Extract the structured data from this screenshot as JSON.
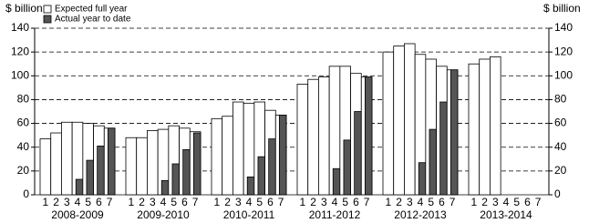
{
  "chart_data": {
    "type": "bar",
    "y_label": "$ billion",
    "y2_label": "$ billion",
    "groups": [
      "2008-2009",
      "2009-2010",
      "2010-2011",
      "2011-2012",
      "2012-2013",
      "2013-2014"
    ],
    "categories": [
      "1",
      "2",
      "3",
      "4",
      "5",
      "6",
      "7",
      "1",
      "2",
      "3",
      "4",
      "5",
      "6",
      "7",
      "1",
      "2",
      "3",
      "4",
      "5",
      "6",
      "7",
      "1",
      "2",
      "3",
      "4",
      "5",
      "6",
      "7",
      "1",
      "2",
      "3",
      "4",
      "5",
      "6",
      "7",
      "1",
      "2",
      "3",
      "4",
      "5",
      "6",
      "7"
    ],
    "series": [
      {
        "name": "Expected full year",
        "color": "#ffffff",
        "values": [
          47,
          52,
          61,
          61,
          60,
          58,
          56,
          48,
          48,
          54,
          55,
          58,
          56,
          53,
          64,
          66,
          78,
          77,
          78,
          71,
          67,
          93,
          97,
          99,
          108,
          108,
          102,
          99,
          120,
          125,
          127,
          118,
          114,
          108,
          105,
          110,
          114,
          116,
          null,
          null,
          null,
          null
        ]
      },
      {
        "name": "Actual year to date",
        "color": "#555555",
        "values": [
          null,
          null,
          null,
          13,
          29,
          41,
          56,
          null,
          null,
          null,
          12,
          26,
          38,
          52,
          null,
          null,
          null,
          15,
          32,
          47,
          67,
          null,
          null,
          null,
          22,
          46,
          70,
          99,
          null,
          null,
          null,
          27,
          55,
          78,
          105,
          null,
          null,
          null,
          null,
          null,
          null,
          null
        ]
      }
    ],
    "ylim": [
      0,
      140
    ],
    "yticks": [
      0,
      20,
      40,
      60,
      80,
      100,
      120,
      140
    ],
    "y2lim": [
      0,
      140
    ],
    "y2ticks": [
      0,
      20,
      40,
      60,
      80,
      100,
      120,
      140
    ],
    "grid": true
  }
}
